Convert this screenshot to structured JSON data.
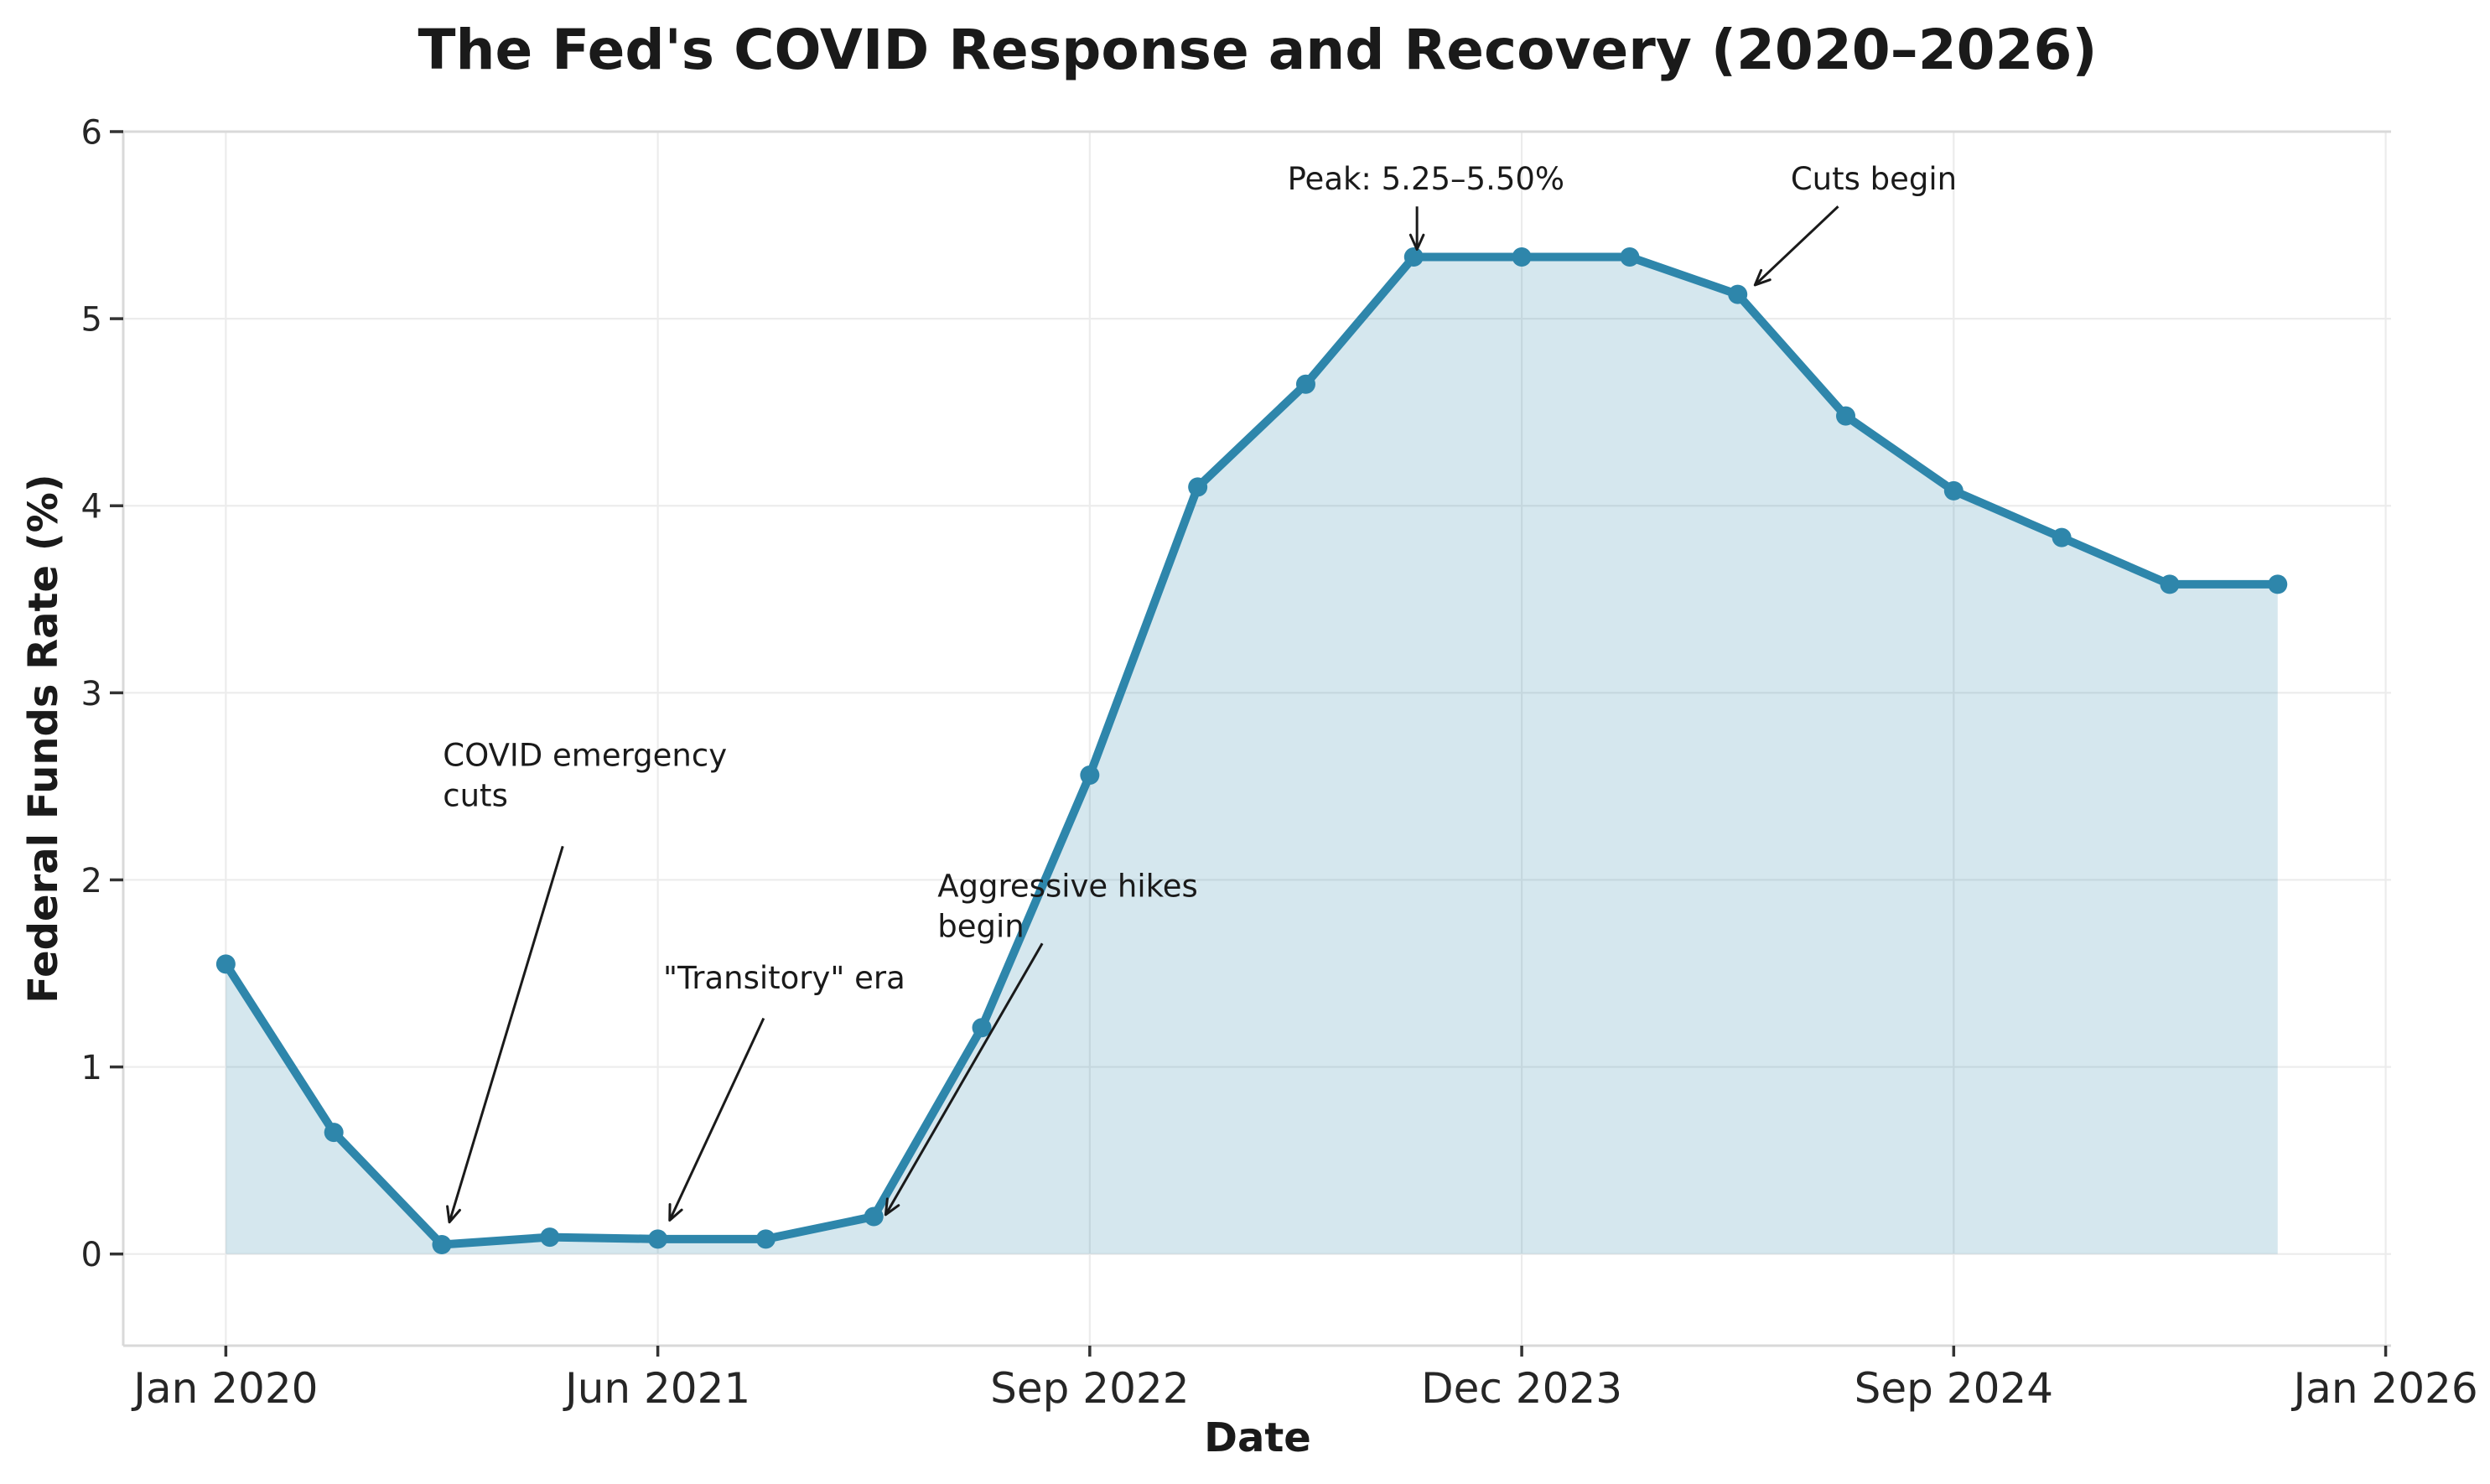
{
  "figure": {
    "title": "The Fed's COVID Response and Recovery (2020–2026)"
  },
  "colors": {
    "line": "#2E86AB",
    "fill": "rgba(46, 134, 171, 0.2)",
    "grid": "#ececec",
    "spine": "#d9d9d9",
    "tick_mark": "#333333",
    "tick_label": "#262626",
    "text": "#1a1a1a",
    "background": "#ffffff"
  },
  "chart_data": {
    "type": "line",
    "title": "The Fed's COVID Response and Recovery (2020–2026)",
    "xlabel": "Date",
    "ylabel": "Federal Funds Rate (%)",
    "grid": true,
    "legend_position": "none",
    "marker": "circle",
    "area_fill": true,
    "xlim": [
      -0.95,
      20.05
    ],
    "ylim": [
      -0.49,
      6.0
    ],
    "series": [
      {
        "name": "Federal Funds Rate",
        "x": [
          0,
          1,
          2,
          3,
          4,
          5,
          6,
          7,
          8,
          9,
          10,
          11,
          12,
          13,
          14,
          15,
          16,
          17,
          18,
          19
        ],
        "values": [
          1.55,
          0.65,
          0.05,
          0.09,
          0.08,
          0.08,
          0.2,
          1.21,
          2.56,
          4.1,
          4.65,
          5.33,
          5.33,
          5.33,
          5.13,
          4.48,
          4.08,
          3.83,
          3.58,
          3.58
        ]
      }
    ],
    "x_ticks": {
      "positions": [
        0,
        4,
        8,
        12,
        16,
        20
      ],
      "labels": [
        "Jan 2020",
        "Jun 2021",
        "Sep 2022",
        "Dec 2023",
        "Sep 2024",
        "Jan 2026"
      ]
    },
    "y_ticks": [
      0,
      1,
      2,
      3,
      4,
      5,
      6
    ],
    "annotations": [
      {
        "lines": [
          "COVID emergency",
          "cuts"
        ],
        "text_xy": [
          2.01,
          2.74
        ],
        "arrow_from": [
          3.12,
          2.18
        ],
        "arrow_to": [
          2.07,
          0.17
        ]
      },
      {
        "lines": [
          "\"Transitory\" era"
        ],
        "text_xy": [
          4.05,
          1.55
        ],
        "arrow_from": [
          4.98,
          1.26
        ],
        "arrow_to": [
          4.11,
          0.18
        ]
      },
      {
        "lines": [
          "Aggressive hikes",
          "begin"
        ],
        "text_xy": [
          6.59,
          2.04
        ],
        "arrow_from": [
          7.56,
          1.66
        ],
        "arrow_to": [
          6.11,
          0.21
        ]
      },
      {
        "lines": [
          "Peak: 5.25–5.50%"
        ],
        "text_xy": [
          9.83,
          5.82
        ],
        "arrow_from": [
          11.03,
          5.6
        ],
        "arrow_to": [
          11.03,
          5.37
        ]
      },
      {
        "lines": [
          "Cuts begin"
        ],
        "text_xy": [
          14.49,
          5.82
        ],
        "arrow_from": [
          14.93,
          5.6
        ],
        "arrow_to": [
          14.16,
          5.18
        ]
      }
    ]
  }
}
